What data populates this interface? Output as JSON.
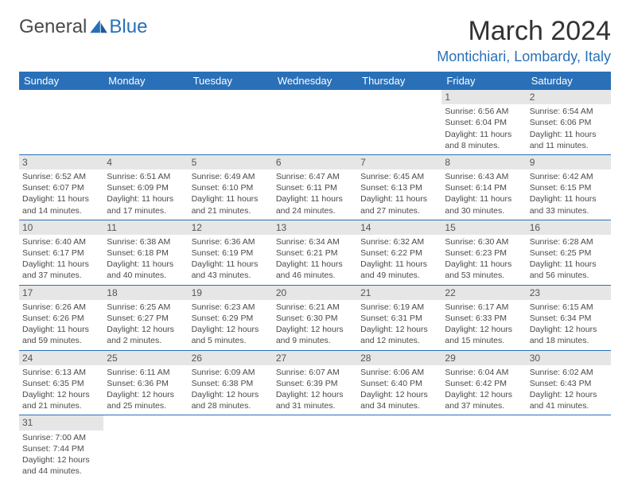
{
  "logo": {
    "part1": "General",
    "part2": "Blue"
  },
  "title": "March 2024",
  "location": "Montichiari, Lombardy, Italy",
  "day_headers": [
    "Sunday",
    "Monday",
    "Tuesday",
    "Wednesday",
    "Thursday",
    "Friday",
    "Saturday"
  ],
  "colors": {
    "header_bg": "#2970b8",
    "daynum_bg": "#e6e6e6",
    "row_border": "#2970b8",
    "accent": "#2970b8"
  },
  "weeks": [
    [
      {
        "n": "",
        "t": ""
      },
      {
        "n": "",
        "t": ""
      },
      {
        "n": "",
        "t": ""
      },
      {
        "n": "",
        "t": ""
      },
      {
        "n": "",
        "t": ""
      },
      {
        "n": "1",
        "sr": "6:56 AM",
        "ss": "6:04 PM",
        "dl": "11 hours and 8 minutes."
      },
      {
        "n": "2",
        "sr": "6:54 AM",
        "ss": "6:06 PM",
        "dl": "11 hours and 11 minutes."
      }
    ],
    [
      {
        "n": "3",
        "sr": "6:52 AM",
        "ss": "6:07 PM",
        "dl": "11 hours and 14 minutes."
      },
      {
        "n": "4",
        "sr": "6:51 AM",
        "ss": "6:09 PM",
        "dl": "11 hours and 17 minutes."
      },
      {
        "n": "5",
        "sr": "6:49 AM",
        "ss": "6:10 PM",
        "dl": "11 hours and 21 minutes."
      },
      {
        "n": "6",
        "sr": "6:47 AM",
        "ss": "6:11 PM",
        "dl": "11 hours and 24 minutes."
      },
      {
        "n": "7",
        "sr": "6:45 AM",
        "ss": "6:13 PM",
        "dl": "11 hours and 27 minutes."
      },
      {
        "n": "8",
        "sr": "6:43 AM",
        "ss": "6:14 PM",
        "dl": "11 hours and 30 minutes."
      },
      {
        "n": "9",
        "sr": "6:42 AM",
        "ss": "6:15 PM",
        "dl": "11 hours and 33 minutes."
      }
    ],
    [
      {
        "n": "10",
        "sr": "6:40 AM",
        "ss": "6:17 PM",
        "dl": "11 hours and 37 minutes."
      },
      {
        "n": "11",
        "sr": "6:38 AM",
        "ss": "6:18 PM",
        "dl": "11 hours and 40 minutes."
      },
      {
        "n": "12",
        "sr": "6:36 AM",
        "ss": "6:19 PM",
        "dl": "11 hours and 43 minutes."
      },
      {
        "n": "13",
        "sr": "6:34 AM",
        "ss": "6:21 PM",
        "dl": "11 hours and 46 minutes."
      },
      {
        "n": "14",
        "sr": "6:32 AM",
        "ss": "6:22 PM",
        "dl": "11 hours and 49 minutes."
      },
      {
        "n": "15",
        "sr": "6:30 AM",
        "ss": "6:23 PM",
        "dl": "11 hours and 53 minutes."
      },
      {
        "n": "16",
        "sr": "6:28 AM",
        "ss": "6:25 PM",
        "dl": "11 hours and 56 minutes."
      }
    ],
    [
      {
        "n": "17",
        "sr": "6:26 AM",
        "ss": "6:26 PM",
        "dl": "11 hours and 59 minutes."
      },
      {
        "n": "18",
        "sr": "6:25 AM",
        "ss": "6:27 PM",
        "dl": "12 hours and 2 minutes."
      },
      {
        "n": "19",
        "sr": "6:23 AM",
        "ss": "6:29 PM",
        "dl": "12 hours and 5 minutes."
      },
      {
        "n": "20",
        "sr": "6:21 AM",
        "ss": "6:30 PM",
        "dl": "12 hours and 9 minutes."
      },
      {
        "n": "21",
        "sr": "6:19 AM",
        "ss": "6:31 PM",
        "dl": "12 hours and 12 minutes."
      },
      {
        "n": "22",
        "sr": "6:17 AM",
        "ss": "6:33 PM",
        "dl": "12 hours and 15 minutes."
      },
      {
        "n": "23",
        "sr": "6:15 AM",
        "ss": "6:34 PM",
        "dl": "12 hours and 18 minutes."
      }
    ],
    [
      {
        "n": "24",
        "sr": "6:13 AM",
        "ss": "6:35 PM",
        "dl": "12 hours and 21 minutes."
      },
      {
        "n": "25",
        "sr": "6:11 AM",
        "ss": "6:36 PM",
        "dl": "12 hours and 25 minutes."
      },
      {
        "n": "26",
        "sr": "6:09 AM",
        "ss": "6:38 PM",
        "dl": "12 hours and 28 minutes."
      },
      {
        "n": "27",
        "sr": "6:07 AM",
        "ss": "6:39 PM",
        "dl": "12 hours and 31 minutes."
      },
      {
        "n": "28",
        "sr": "6:06 AM",
        "ss": "6:40 PM",
        "dl": "12 hours and 34 minutes."
      },
      {
        "n": "29",
        "sr": "6:04 AM",
        "ss": "6:42 PM",
        "dl": "12 hours and 37 minutes."
      },
      {
        "n": "30",
        "sr": "6:02 AM",
        "ss": "6:43 PM",
        "dl": "12 hours and 41 minutes."
      }
    ],
    [
      {
        "n": "31",
        "sr": "7:00 AM",
        "ss": "7:44 PM",
        "dl": "12 hours and 44 minutes."
      },
      {
        "n": "",
        "t": ""
      },
      {
        "n": "",
        "t": ""
      },
      {
        "n": "",
        "t": ""
      },
      {
        "n": "",
        "t": ""
      },
      {
        "n": "",
        "t": ""
      },
      {
        "n": "",
        "t": ""
      }
    ]
  ],
  "labels": {
    "sunrise": "Sunrise:",
    "sunset": "Sunset:",
    "daylight": "Daylight:"
  }
}
